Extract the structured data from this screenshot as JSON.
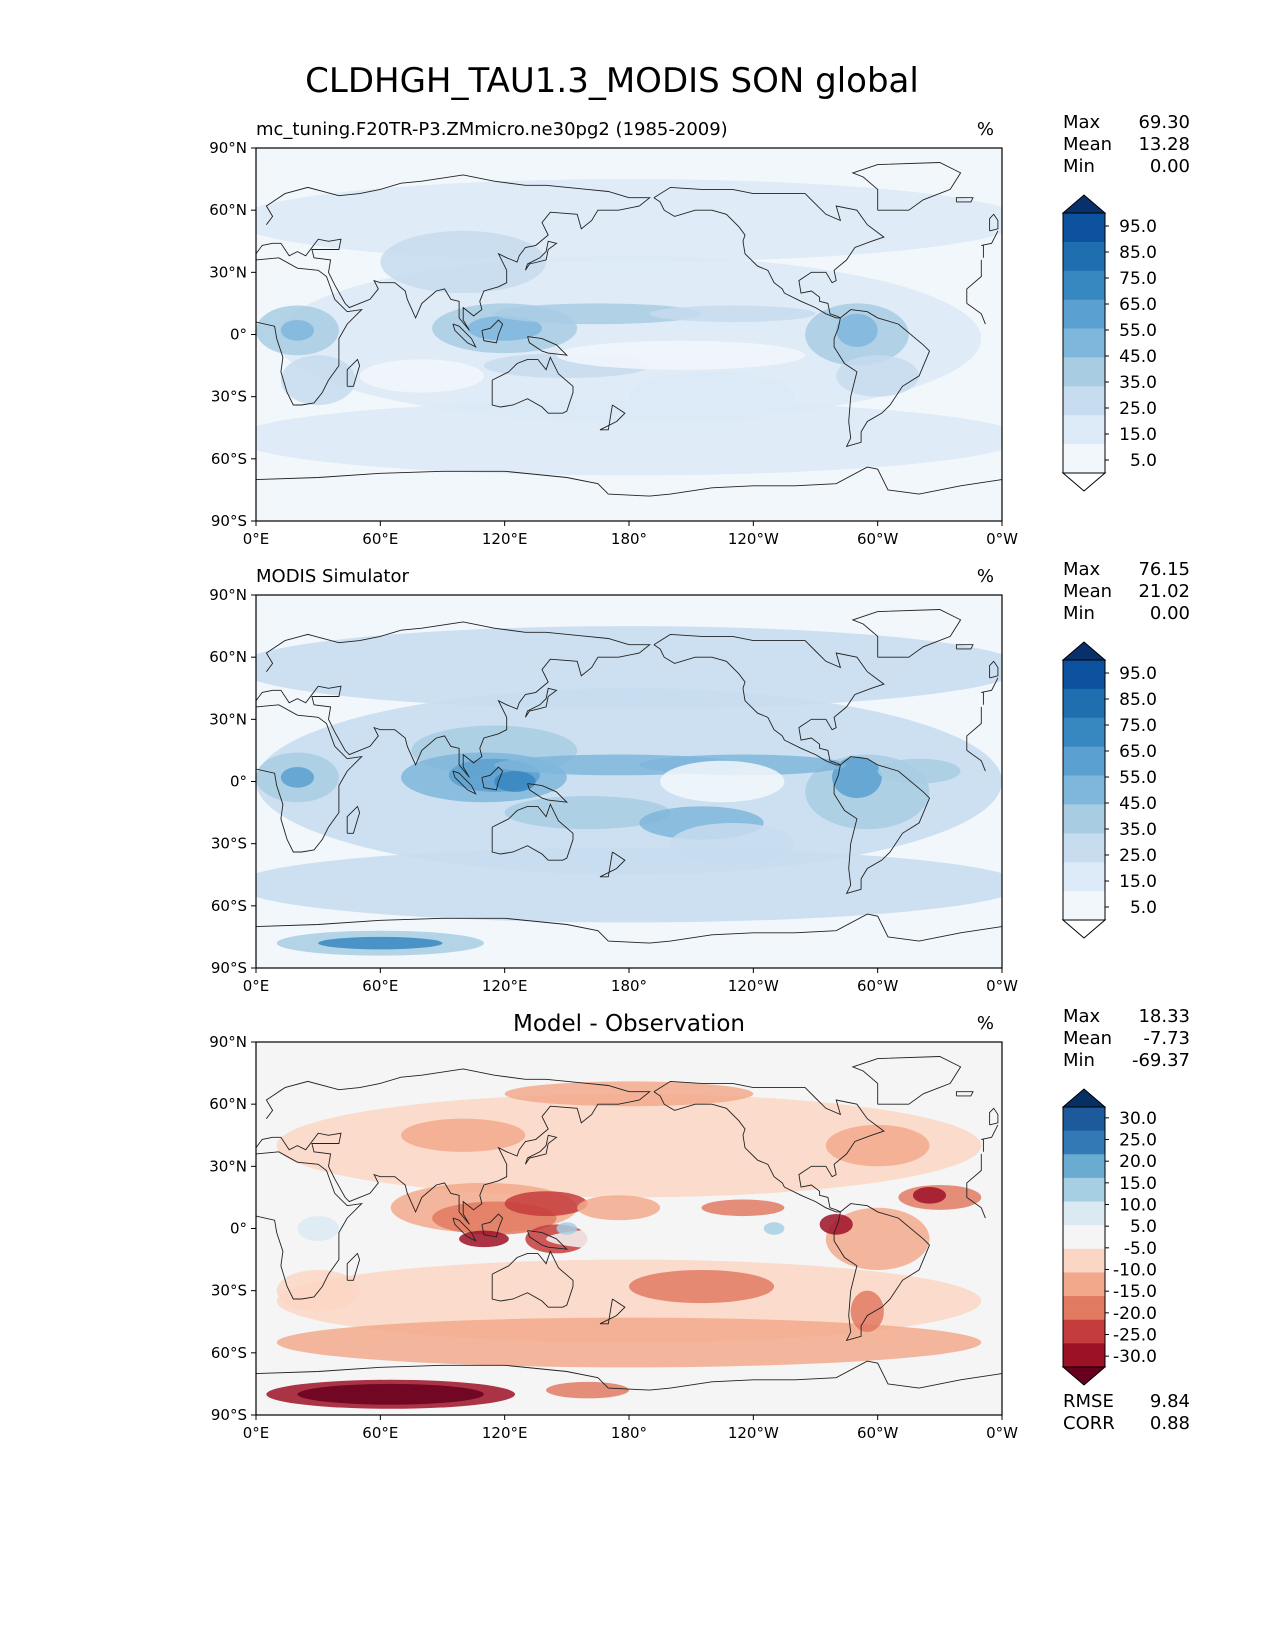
{
  "page": {
    "title": "CLDHGH_TAU1.3_MODIS SON global"
  },
  "axes": {
    "lat_ticks": [
      "90°N",
      "60°N",
      "30°N",
      "0°",
      "30°S",
      "60°S",
      "90°S"
    ],
    "lon_ticks": [
      "0°E",
      "60°E",
      "120°E",
      "180°",
      "120°W",
      "60°W",
      "0°W"
    ]
  },
  "colors": {
    "blues": [
      "#ffffff",
      "#f2f7fc",
      "#dce9f6",
      "#c7dcef",
      "#a8cde3",
      "#7fb6dc",
      "#5aa0d0",
      "#3787c0",
      "#1f6fb0",
      "#0b519e",
      "#08306b"
    ],
    "diff": [
      "#67001f",
      "#9d1127",
      "#c43c3c",
      "#e07a61",
      "#f2a98b",
      "#fbd6c4",
      "#f5f5f5",
      "#dbeaf2",
      "#a6cfe4",
      "#6aabd1",
      "#3279b6",
      "#1c5a9c",
      "#053061"
    ],
    "land_line": "#222222"
  },
  "chart_data": [
    {
      "type": "heatmap",
      "panel": "test",
      "title": "mc_tuning.F20TR-P3.ZMmicro.ne30pg2 (1985-2009)",
      "units": "%",
      "stats": {
        "max_label": "Max",
        "max": "69.30",
        "mean_label": "Mean",
        "mean": "13.28",
        "min_label": "Min",
        "min": "0.00"
      },
      "colorbar_labels": [
        "95.0",
        "85.0",
        "75.0",
        "65.0",
        "55.0",
        "45.0",
        "35.0",
        "25.0",
        "15.0",
        "5.0"
      ],
      "x_range": [
        0,
        360
      ],
      "y_range": [
        -90,
        90
      ]
    },
    {
      "type": "heatmap",
      "panel": "reference",
      "title": "MODIS Simulator",
      "units": "%",
      "stats": {
        "max_label": "Max",
        "max": "76.15",
        "mean_label": "Mean",
        "mean": "21.02",
        "min_label": "Min",
        "min": "0.00"
      },
      "colorbar_labels": [
        "95.0",
        "85.0",
        "75.0",
        "65.0",
        "55.0",
        "45.0",
        "35.0",
        "25.0",
        "15.0",
        "5.0"
      ],
      "x_range": [
        0,
        360
      ],
      "y_range": [
        -90,
        90
      ]
    },
    {
      "type": "heatmap",
      "panel": "difference",
      "title": "Model - Observation",
      "units": "%",
      "stats": {
        "max_label": "Max",
        "max": "18.33",
        "mean_label": "Mean",
        "mean": "-7.73",
        "min_label": "Min",
        "min": "-69.37"
      },
      "colorbar_labels": [
        "30.0",
        "25.0",
        "20.0",
        "15.0",
        "10.0",
        "5.0",
        "-5.0",
        "-10.0",
        "-15.0",
        "-20.0",
        "-25.0",
        "-30.0"
      ],
      "metrics": {
        "rmse_label": "RMSE",
        "rmse": "9.84",
        "corr_label": "CORR",
        "corr": "0.88"
      },
      "x_range": [
        0,
        360
      ],
      "y_range": [
        -90,
        90
      ]
    }
  ]
}
